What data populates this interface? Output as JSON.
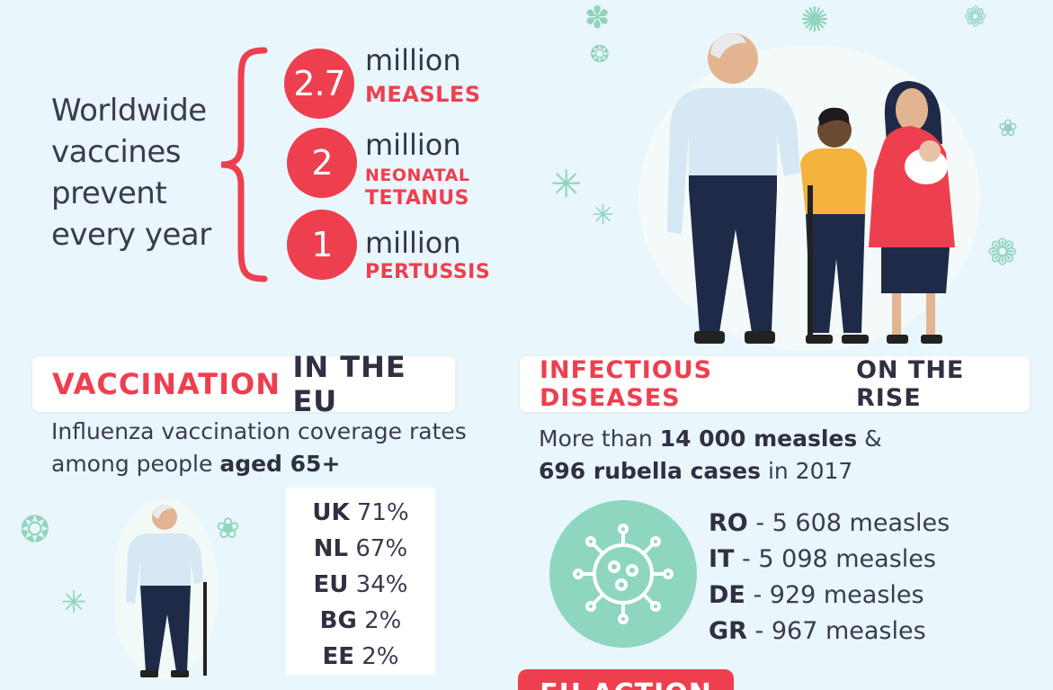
{
  "worldwide": {
    "lines": [
      "Worldwide",
      "vaccines",
      "prevent",
      "every year"
    ],
    "stats": [
      {
        "number": "2.7",
        "unit": "million",
        "disease": [
          "MEASLES"
        ]
      },
      {
        "number": "2",
        "unit": "million",
        "disease": [
          "NEONATAL",
          "TETANUS"
        ]
      },
      {
        "number": "1",
        "unit": "million",
        "disease": [
          "PERTUSSIS"
        ]
      }
    ]
  },
  "vaccination": {
    "title_red": "VACCINATION",
    "title_dark": "IN THE EU",
    "desc_line1": "Influenza vaccination coverage rates",
    "desc_line2_pre": "among people ",
    "desc_line2_bold": "aged 65+",
    "coverage": [
      {
        "country": "UK",
        "rate": "71%"
      },
      {
        "country": "NL",
        "rate": "67%"
      },
      {
        "country": "EU",
        "rate": "34%"
      },
      {
        "country": "BG",
        "rate": "2%"
      },
      {
        "country": "EE",
        "rate": "2%"
      }
    ]
  },
  "infectious": {
    "title_red": "INFECTIOUS DISEASES",
    "title_dark": "ON THE RISE",
    "line1_pre": "More than ",
    "line1_bold": "14 000 measles",
    "line1_post": " &",
    "line2_bold": "696 rubella cases",
    "line2_post": " in 2017",
    "measles": [
      {
        "country": "RO",
        "text": " - 5 608 measles"
      },
      {
        "country": "IT",
        "text": " - 5 098 measles"
      },
      {
        "country": "DE",
        "text": " - 929 measles"
      },
      {
        "country": "GR",
        "text": " - 967 measles"
      }
    ]
  },
  "eu_action": {
    "label": "EU ACTION"
  },
  "colors": {
    "accent": "#ee3f4f",
    "mint": "#8ed6bf",
    "background": "#e9f6fb",
    "dark": "#2f3042"
  }
}
